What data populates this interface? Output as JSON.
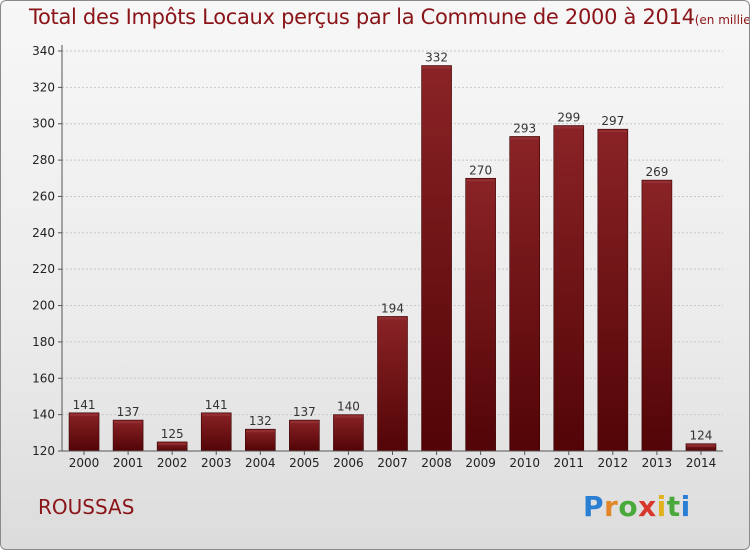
{
  "chart_data": {
    "type": "bar",
    "title": "Total des Impôts Locaux perçus par la Commune de 2000 à 2014",
    "unit": "(en milliers d'€)",
    "categories": [
      "2000",
      "2001",
      "2002",
      "2003",
      "2004",
      "2005",
      "2006",
      "2007",
      "2008",
      "2009",
      "2010",
      "2011",
      "2012",
      "2013",
      "2014"
    ],
    "values": [
      141,
      137,
      125,
      141,
      132,
      137,
      140,
      194,
      332,
      270,
      293,
      299,
      297,
      269,
      124
    ],
    "ylim": [
      120,
      340
    ],
    "yticks": [
      120,
      140,
      160,
      180,
      200,
      220,
      240,
      260,
      280,
      300,
      320,
      340
    ],
    "xlabel": "",
    "ylabel": "",
    "bar_color": "#6e0c0e",
    "grid": true
  },
  "commune": "ROUSSAS",
  "logo": {
    "letters": [
      "P",
      "r",
      "o",
      "x",
      "i",
      "t",
      "i"
    ],
    "colors": [
      "#2a7fd4",
      "#e2862a",
      "#49a93a",
      "#d8372b",
      "#e2b21d",
      "#49a93a",
      "#2a7fd4"
    ]
  }
}
